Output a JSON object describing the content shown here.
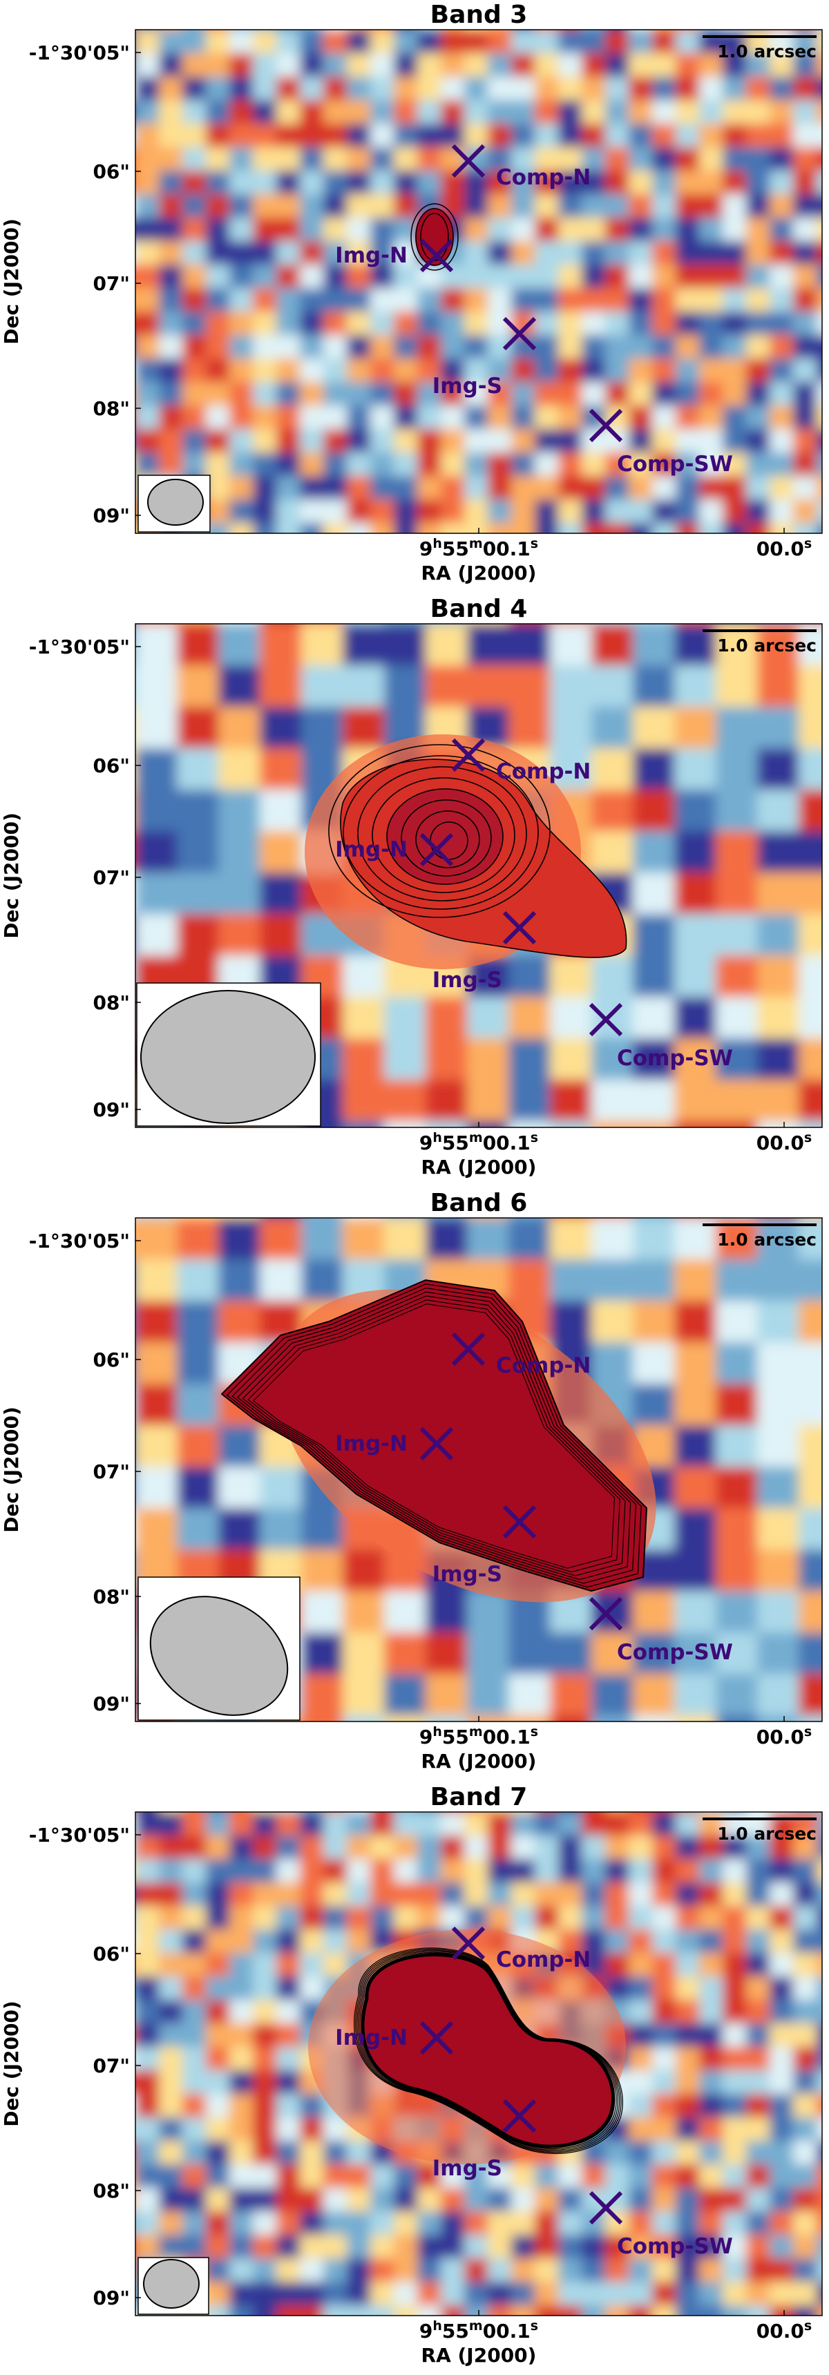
{
  "chart_data": [
    {
      "type": "image",
      "title": "Band 3",
      "xlabel": "RA (J2000)",
      "ylabel": "Dec (J2000)",
      "x_ticks": [
        {
          "label": "9h55m00.1s",
          "base": "9",
          "h": "h",
          "m_val": "55",
          "m": "m",
          "s_val": "00.1",
          "s": "s"
        },
        {
          "label": "00.0s",
          "base": "00.0",
          "s": "s"
        }
      ],
      "y_ticks": [
        "-1°30'05\"",
        "06\"",
        "07\"",
        "08\"",
        "09\""
      ],
      "scale_bar": "1.0 arcsec",
      "markers": [
        {
          "label": "Comp-N",
          "pos": [
            0.6,
            0.3
          ]
        },
        {
          "label": "Img-N",
          "pos": [
            0.55,
            0.2
          ]
        },
        {
          "label": "Img-S",
          "pos": [
            0.7,
            0.65
          ]
        },
        {
          "label": "Comp-SW",
          "pos": [
            0.83,
            1.1
          ]
        }
      ]
    },
    {
      "type": "image",
      "title": "Band 4",
      "xlabel": "RA (J2000)",
      "ylabel": "Dec (J2000)",
      "x_ticks": [
        {
          "label": "9h55m00.1s",
          "base": "9",
          "h": "h",
          "m_val": "55",
          "m": "m",
          "s_val": "00.1",
          "s": "s"
        },
        {
          "label": "00.0s",
          "base": "00.0",
          "s": "s"
        }
      ],
      "y_ticks": [
        "-1°30'05\"",
        "06\"",
        "07\"",
        "08\"",
        "09\""
      ],
      "scale_bar": "1.0 arcsec",
      "markers": [
        {
          "label": "Comp-N",
          "pos": [
            0.6,
            0.3
          ]
        },
        {
          "label": "Img-N",
          "pos": [
            0.55,
            0.2
          ]
        },
        {
          "label": "Img-S",
          "pos": [
            0.7,
            0.65
          ]
        },
        {
          "label": "Comp-SW",
          "pos": [
            0.83,
            1.1
          ]
        }
      ]
    },
    {
      "type": "image",
      "title": "Band 6",
      "xlabel": "RA (J2000)",
      "ylabel": "Dec (J2000)",
      "x_ticks": [
        {
          "label": "9h55m00.1s",
          "base": "9",
          "h": "h",
          "m_val": "55",
          "m": "m",
          "s_val": "00.1",
          "s": "s"
        },
        {
          "label": "00.0s",
          "base": "00.0",
          "s": "s"
        }
      ],
      "y_ticks": [
        "-1°30'05\"",
        "06\"",
        "07\"",
        "08\"",
        "09\""
      ],
      "scale_bar": "1.0 arcsec",
      "markers": [
        {
          "label": "Comp-N",
          "pos": [
            0.6,
            0.3
          ]
        },
        {
          "label": "Img-N",
          "pos": [
            0.55,
            0.2
          ]
        },
        {
          "label": "Img-S",
          "pos": [
            0.7,
            0.65
          ]
        },
        {
          "label": "Comp-SW",
          "pos": [
            0.83,
            1.1
          ]
        }
      ]
    },
    {
      "type": "image",
      "title": "Band 7",
      "xlabel": "RA (J2000)",
      "ylabel": "Dec (J2000)",
      "x_ticks": [
        {
          "label": "9h55m00.1s",
          "base": "9",
          "h": "h",
          "m_val": "55",
          "m": "m",
          "s_val": "00.1",
          "s": "s"
        },
        {
          "label": "00.0s",
          "base": "00.0",
          "s": "s"
        }
      ],
      "y_ticks": [
        "-1°30'05\"",
        "06\"",
        "07\"",
        "08\"",
        "09\""
      ],
      "scale_bar": "1.0 arcsec",
      "markers": [
        {
          "label": "Comp-N",
          "pos": [
            0.6,
            0.3
          ]
        },
        {
          "label": "Img-N",
          "pos": [
            0.55,
            0.2
          ]
        },
        {
          "label": "Img-S",
          "pos": [
            0.7,
            0.65
          ]
        },
        {
          "label": "Comp-SW",
          "pos": [
            0.83,
            1.1
          ]
        }
      ]
    }
  ],
  "colors": {
    "marker": "#3d0a78",
    "core": "#a50a20"
  }
}
